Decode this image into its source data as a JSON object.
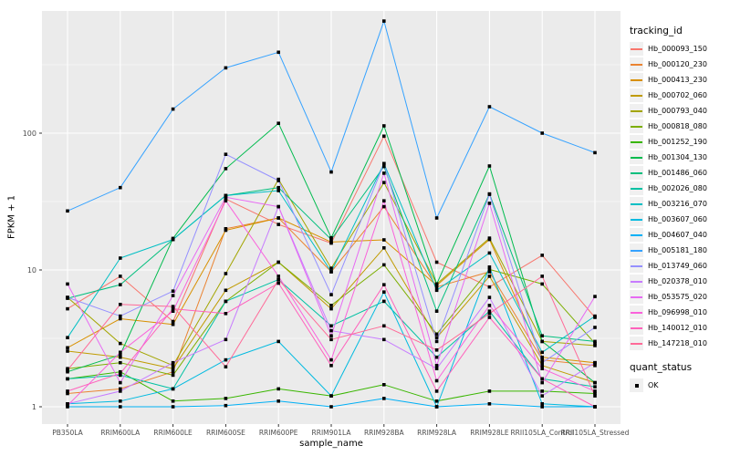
{
  "chart_data": {
    "type": "line",
    "title": "",
    "xlabel": "sample_name",
    "ylabel": "FPKM + 1",
    "y_scale": "log10",
    "ylim": [
      0.75,
      790
    ],
    "grid": true,
    "legend_position": "right",
    "panel_bg": "#EBEBEB",
    "grid_color": "#FFFFFF",
    "point_color": "#000000",
    "axis_text_color": "#4D4D4D",
    "tick_color": "#333333",
    "y_ticks": [
      {
        "label": "1",
        "value": 1
      },
      {
        "label": "10",
        "value": 10
      },
      {
        "label": "100",
        "value": 100
      }
    ],
    "y_minor_values": [
      3.162,
      31.62,
      316.2
    ],
    "categories": [
      "PB350LA",
      "RRIM600LA",
      "RRIM600LE",
      "RRIM600SE",
      "RRIM600PE",
      "RRIM901LA",
      "RRIM928BA",
      "RRIM928LA",
      "RRIM928LE",
      "RRII105LA_Control",
      "RRII105LA_Stressed"
    ],
    "series": [
      {
        "name": "Hb_000093_150",
        "color": "#F8766D",
        "values": [
          5.2,
          9.0,
          4.2,
          33,
          21.5,
          15.7,
          95,
          11.4,
          7.5,
          12.8,
          4.5
        ]
      },
      {
        "name": "Hb_000120_230",
        "color": "#EA8331",
        "values": [
          1.25,
          1.35,
          1.8,
          20,
          24,
          9.7,
          29,
          7.5,
          9.7,
          2.2,
          2.0
        ]
      },
      {
        "name": "Hb_000413_230",
        "color": "#D89000",
        "values": [
          2.7,
          4.4,
          4.0,
          19.5,
          24,
          16,
          16.6,
          7.7,
          16.7,
          2.3,
          2.1
        ]
      },
      {
        "name": "Hb_000702_060",
        "color": "#C09B00",
        "values": [
          2.55,
          2.3,
          1.9,
          7.1,
          11.4,
          5.2,
          14.5,
          3.2,
          9.0,
          2.0,
          1.5
        ]
      },
      {
        "name": "Hb_000793_040",
        "color": "#A3A500",
        "values": [
          6.3,
          2.9,
          2.0,
          9.4,
          46,
          10.3,
          43.5,
          7.9,
          17.1,
          3.0,
          2.8
        ]
      },
      {
        "name": "Hb_000818_080",
        "color": "#7CAE00",
        "values": [
          1.9,
          2.1,
          1.7,
          5.9,
          11.4,
          5.5,
          10.9,
          3.4,
          10.1,
          7.9,
          2.9
        ]
      },
      {
        "name": "Hb_001252_190",
        "color": "#39B600",
        "values": [
          1.6,
          1.8,
          1.1,
          1.15,
          1.35,
          1.2,
          1.45,
          1.1,
          1.3,
          1.3,
          1.25
        ]
      },
      {
        "name": "Hb_001304_130",
        "color": "#00BB4E",
        "values": [
          1.8,
          2.4,
          17,
          55,
          118,
          17.2,
          113,
          7.9,
          57.5,
          3.0,
          1.5
        ]
      },
      {
        "name": "Hb_001486_060",
        "color": "#00BF7D",
        "values": [
          6.2,
          7.8,
          16.7,
          35,
          40,
          16.7,
          57,
          5.0,
          36,
          3.3,
          3.0
        ]
      },
      {
        "name": "Hb_002026_080",
        "color": "#00C1A3",
        "values": [
          1.6,
          1.7,
          1.35,
          5.9,
          8.5,
          3.9,
          5.9,
          2.3,
          5.0,
          1.6,
          1.4
        ]
      },
      {
        "name": "Hb_003216_070",
        "color": "#00BFC4",
        "values": [
          3.2,
          12.2,
          16.7,
          35,
          38,
          9.7,
          60,
          7.1,
          13.3,
          2.5,
          4.6
        ]
      },
      {
        "name": "Hb_003607_060",
        "color": "#00BAE0",
        "values": [
          1.05,
          1.1,
          1.35,
          2.2,
          3.0,
          1.2,
          6.9,
          1.0,
          10.5,
          1.05,
          1.0
        ]
      },
      {
        "name": "Hb_004607_040",
        "color": "#00B0F6",
        "values": [
          1.0,
          1.0,
          1.0,
          1.02,
          1.1,
          1.0,
          1.15,
          1.0,
          1.05,
          1.0,
          1.0
        ]
      },
      {
        "name": "Hb_005181_180",
        "color": "#35A2FF",
        "values": [
          27,
          40,
          150,
          300,
          390,
          52,
          660,
          24,
          156,
          100,
          72
        ]
      },
      {
        "name": "Hb_013749_060",
        "color": "#9590FF",
        "values": [
          6.3,
          4.6,
          7.0,
          70,
          45,
          6.6,
          60,
          3.0,
          35.7,
          2.1,
          3.8
        ]
      },
      {
        "name": "Hb_020378_010",
        "color": "#C77CFF",
        "values": [
          1.05,
          1.3,
          2.1,
          3.1,
          29,
          3.6,
          3.1,
          1.9,
          6.3,
          1.2,
          2.1
        ]
      },
      {
        "name": "Hb_053575_020",
        "color": "#E76BF3",
        "values": [
          7.9,
          1.5,
          6.5,
          34,
          29,
          3.3,
          51,
          2.0,
          30.7,
          1.5,
          6.4
        ]
      },
      {
        "name": "Hb_096998_010",
        "color": "#FA62DB",
        "values": [
          1.02,
          2.5,
          5.0,
          32,
          9.0,
          2.2,
          32,
          1.55,
          5.5,
          1.9,
          1.3
        ]
      },
      {
        "name": "Hb_140012_010",
        "color": "#FF62BC",
        "values": [
          1.3,
          1.75,
          5.2,
          4.8,
          8.0,
          2.0,
          7.8,
          1.3,
          4.5,
          1.6,
          1.0
        ]
      },
      {
        "name": "Hb_147218_010",
        "color": "#FF6A98",
        "values": [
          1.85,
          5.6,
          5.4,
          1.96,
          8.5,
          3.1,
          3.9,
          2.6,
          4.8,
          9.0,
          1.2
        ]
      }
    ]
  },
  "legend": {
    "tracking_title": "tracking_id",
    "quant_title": "quant_status",
    "quant_items": [
      {
        "label": "OK"
      }
    ]
  }
}
